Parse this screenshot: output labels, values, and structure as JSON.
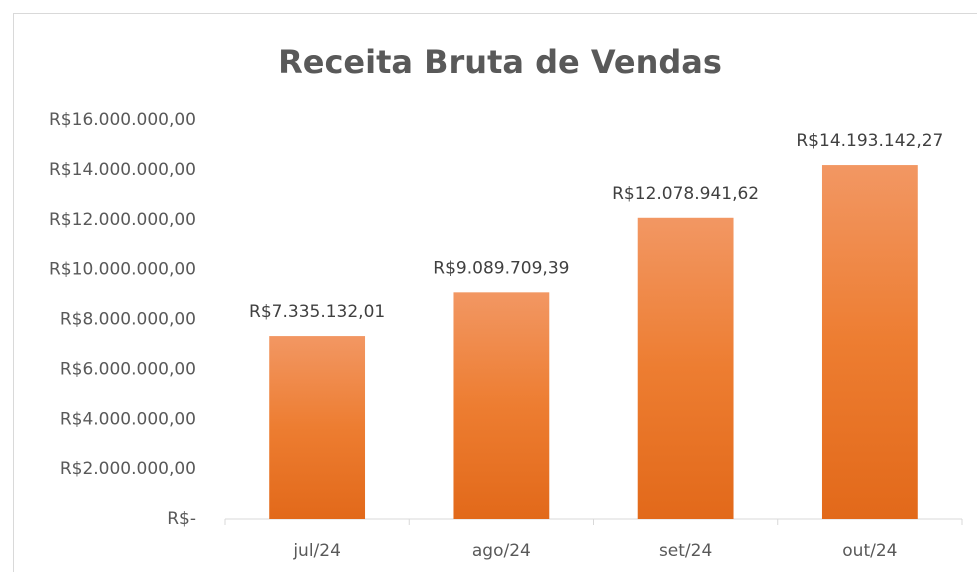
{
  "chart_data": {
    "type": "bar",
    "title": "Receita Bruta de Vendas",
    "categories": [
      "jul/24",
      "ago/24",
      "set/24",
      "out/24"
    ],
    "values": [
      7335132.01,
      9089709.39,
      12078941.62,
      14193142.27
    ],
    "value_labels": [
      "R$7.335.132,01",
      "R$9.089.709,39",
      "R$12.078.941,62",
      "R$14.193.142,27"
    ],
    "color": "#ed7d31",
    "ylim": [
      0,
      16000000
    ],
    "yticks": [
      {
        "value": 0,
        "label": "R$-"
      },
      {
        "value": 2000000,
        "label": "R$2.000.000,00"
      },
      {
        "value": 4000000,
        "label": "R$4.000.000,00"
      },
      {
        "value": 6000000,
        "label": "R$6.000.000,00"
      },
      {
        "value": 8000000,
        "label": "R$8.000.000,00"
      },
      {
        "value": 10000000,
        "label": "R$10.000.000,00"
      },
      {
        "value": 12000000,
        "label": "R$12.000.000,00"
      },
      {
        "value": 14000000,
        "label": "R$14.000.000,00"
      },
      {
        "value": 16000000,
        "label": "R$16.000.000,00"
      }
    ],
    "grid": false
  }
}
